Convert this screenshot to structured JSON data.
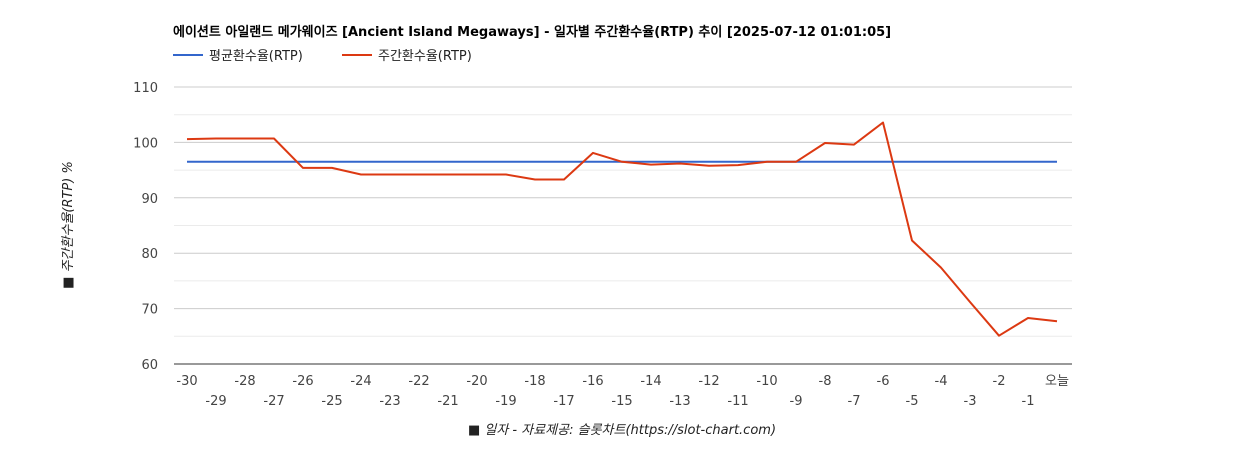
{
  "chart_data": {
    "type": "line",
    "title": "에이션트 아일랜드 메가웨이즈 [Ancient Island Megaways] - 일자별 주간환수율(RTP) 추이 [2025-07-12 01:01:05]",
    "xlabel": "■ 일자 - 자료제공: 슬롯차트(https://slot-chart.com)",
    "ylabel": "■ 주간환수율(RTP) %",
    "ylim": [
      60,
      110
    ],
    "yticks": [
      "110",
      "100",
      "90",
      "80",
      "70",
      "60"
    ],
    "yticks_values": [
      110,
      100,
      90,
      80,
      70,
      60
    ],
    "minor_grid_values": [
      105,
      95,
      85,
      75,
      65
    ],
    "categories": [
      "-30",
      "-29",
      "-28",
      "-27",
      "-26",
      "-25",
      "-24",
      "-23",
      "-22",
      "-21",
      "-20",
      "-19",
      "-18",
      "-17",
      "-16",
      "-15",
      "-14",
      "-13",
      "-12",
      "-11",
      "-10",
      "-9",
      "-8",
      "-7",
      "-6",
      "-5",
      "-4",
      "-3",
      "-2",
      "-1",
      "오늘"
    ],
    "series": [
      {
        "name": "평균환수율(RTP)",
        "color": "#3366cc",
        "values": [
          96.5,
          96.5,
          96.5,
          96.5,
          96.5,
          96.5,
          96.5,
          96.5,
          96.5,
          96.5,
          96.5,
          96.5,
          96.5,
          96.5,
          96.5,
          96.5,
          96.5,
          96.5,
          96.5,
          96.5,
          96.5,
          96.5,
          96.5,
          96.5,
          96.5,
          96.5,
          96.5,
          96.5,
          96.5,
          96.5,
          96.5
        ]
      },
      {
        "name": "주간환수율(RTP)",
        "color": "#dc3912",
        "values": [
          100.6,
          100.7,
          100.7,
          100.7,
          95.4,
          95.4,
          94.2,
          94.2,
          94.2,
          94.2,
          94.2,
          94.2,
          93.3,
          93.3,
          98.1,
          96.5,
          96.0,
          96.2,
          95.8,
          95.9,
          96.5,
          96.5,
          99.9,
          99.6,
          103.6,
          82.3,
          77.4,
          71.2,
          65.1,
          68.3,
          67.7
        ]
      }
    ],
    "grid": true,
    "legend_position": "top-left"
  }
}
